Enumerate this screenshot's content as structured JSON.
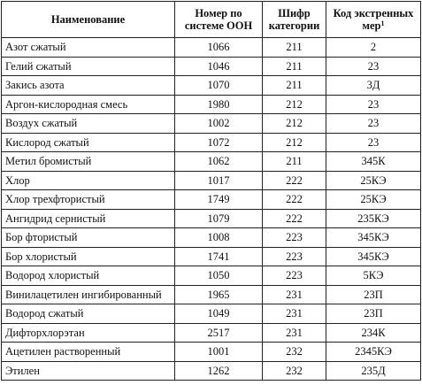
{
  "table": {
    "headers": {
      "name": "Наименование",
      "un_number": "Номер по системе ООН",
      "category": "Шифр категории",
      "code": "Код экстренных мер",
      "code_footnote": "1"
    },
    "rows": [
      {
        "name": "Азот сжатый",
        "un_number": "1066",
        "category": "211",
        "code": "2"
      },
      {
        "name": "Гелий сжатый",
        "un_number": "1046",
        "category": "211",
        "code": "23"
      },
      {
        "name": "Закись азота",
        "un_number": "1070",
        "category": "211",
        "code": "3Д"
      },
      {
        "name": "Аргон-кислородная смесь",
        "un_number": "1980",
        "category": "212",
        "code": "23"
      },
      {
        "name": "Воздух сжатый",
        "un_number": "1002",
        "category": "212",
        "code": "23"
      },
      {
        "name": "Кислород сжатый",
        "un_number": "1072",
        "category": "212",
        "code": "23"
      },
      {
        "name": "Метил бромистый",
        "un_number": "1062",
        "category": "211",
        "code": "345К"
      },
      {
        "name": "Хлор",
        "un_number": "1017",
        "category": "222",
        "code": "25КЭ"
      },
      {
        "name": "Хлор трехфтористый",
        "un_number": "1749",
        "category": "222",
        "code": "25КЭ"
      },
      {
        "name": "Ангидрид сернистый",
        "un_number": "1079",
        "category": "222",
        "code": "235КЭ"
      },
      {
        "name": "Бор фтористый",
        "un_number": "1008",
        "category": "223",
        "code": "345КЭ"
      },
      {
        "name": "Бор хлористый",
        "un_number": "1741",
        "category": "223",
        "code": "345КЭ"
      },
      {
        "name": "Водород хлористый",
        "un_number": "1050",
        "category": "223",
        "code": "5КЭ"
      },
      {
        "name": "Винилацетилен ингибированный",
        "un_number": "1965",
        "category": "231",
        "code": "23П"
      },
      {
        "name": "Водород сжатый",
        "un_number": "1049",
        "category": "231",
        "code": "23П"
      },
      {
        "name": "Дифторхлорэтан",
        "un_number": "2517",
        "category": "231",
        "code": "234К"
      },
      {
        "name": "Ацетилен растворенный",
        "un_number": "1001",
        "category": "232",
        "code": "2345КЭ"
      },
      {
        "name": "Этилен",
        "un_number": "1262",
        "category": "232",
        "code": "235Д"
      }
    ]
  }
}
